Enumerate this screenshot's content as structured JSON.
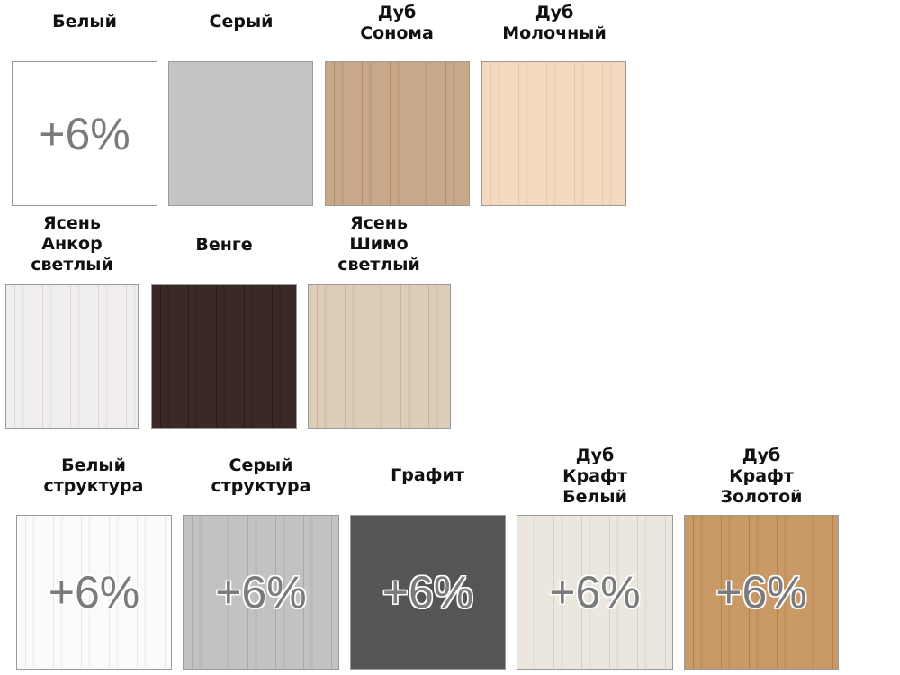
{
  "swatches": [
    {
      "name": [
        "Белый"
      ],
      "color": "#ffffff",
      "grain": "none",
      "surcharge": "+6%"
    },
    {
      "name": [
        "Серый"
      ],
      "color": "#c3c4c6",
      "grain": "none",
      "surcharge": null
    },
    {
      "name": [
        "Дуб",
        "Сонома"
      ],
      "color": "#c8a888",
      "grain": "#b08e6c",
      "surcharge": null
    },
    {
      "name": [
        "Дуб",
        "Молочный"
      ],
      "color": "#f3d9bf",
      "grain": "#e6c7a8",
      "surcharge": null
    },
    {
      "name": [
        "Ясень",
        "Анкор",
        "светлый"
      ],
      "color": "#efedee",
      "grain": "#dcd8da",
      "surcharge": null
    },
    {
      "name": [
        "Венге"
      ],
      "color": "#3a2a26",
      "grain": "#2a1c19",
      "surcharge": null
    },
    {
      "name": [
        "Ясень",
        "Шимо",
        "светлый"
      ],
      "color": "#dccdb8",
      "grain": "#c6b49c",
      "surcharge": null
    },
    {
      "name": [
        "Белый",
        "структура"
      ],
      "color": "#fbfbfb",
      "grain": "#e8e8e8",
      "surcharge": "+6%"
    },
    {
      "name": [
        "Серый",
        "структура"
      ],
      "color": "#c2c2c2",
      "grain": "#a9a9a9",
      "surcharge": "+6%"
    },
    {
      "name": [
        "Графит"
      ],
      "color": "#555555",
      "grain": "none",
      "surcharge": "+6%"
    },
    {
      "name": [
        "Дуб",
        "Крафт",
        "Белый"
      ],
      "color": "#ebe7df",
      "grain": "#d8d2c6",
      "surcharge": "+6%"
    },
    {
      "name": [
        "Дуб",
        "Крафт",
        "Золотой"
      ],
      "color": "#c99a66",
      "grain": "#b5824f",
      "surcharge": "+6%"
    }
  ]
}
